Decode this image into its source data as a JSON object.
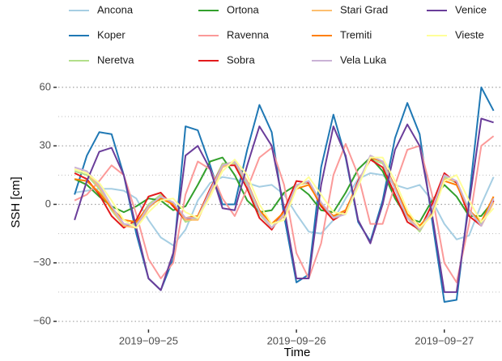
{
  "chart_data": {
    "type": "line",
    "x_label": "Time",
    "y_label": "SSH [cm]",
    "x": [
      24.5,
      24.583,
      24.667,
      24.75,
      24.833,
      24.917,
      25,
      25.083,
      25.167,
      25.25,
      25.333,
      25.417,
      25.5,
      25.583,
      25.667,
      25.75,
      25.833,
      25.917,
      26,
      26.083,
      26.167,
      26.25,
      26.333,
      26.417,
      26.5,
      26.583,
      26.667,
      26.75,
      26.833,
      26.917,
      27,
      27.083,
      27.167,
      27.25,
      27.333
    ],
    "xlim": [
      24.39,
      27.39
    ],
    "xticks": [
      {
        "value": 25,
        "label": "2019−09−25"
      },
      {
        "value": 26,
        "label": "2019−09−26"
      },
      {
        "value": 27,
        "label": "2019−09−27"
      }
    ],
    "ylim": [
      -63.3,
      66.6
    ],
    "yticks": [
      {
        "value": -60,
        "label": "−60"
      },
      {
        "value": -30,
        "label": "−30"
      },
      0,
      30,
      60
    ],
    "yminor": [
      -45,
      -15,
      15,
      45
    ],
    "grid": true,
    "legend": "top",
    "series": [
      {
        "name": "Ancona",
        "color": "#a6cee3",
        "values": [
          6,
          7,
          8,
          8,
          7,
          3,
          -8,
          -17,
          -21,
          -13,
          2,
          11,
          14,
          13,
          11,
          9,
          10,
          5,
          -5,
          -14,
          -15,
          -8,
          3,
          13,
          16,
          15,
          10,
          8,
          10,
          2,
          -10,
          -18,
          -16,
          0,
          14
        ]
      },
      {
        "name": "Koper",
        "color": "#1f78b4",
        "values": [
          5,
          25,
          37,
          36,
          15,
          -15,
          -38,
          -44,
          -28,
          40,
          38,
          20,
          0,
          0,
          28,
          51,
          37,
          -6,
          -40,
          -36,
          19,
          46,
          24,
          -9,
          -19,
          2,
          34,
          52,
          36,
          -8,
          -50,
          -49,
          3,
          60,
          48
        ]
      },
      {
        "name": "Neretva",
        "color": "#b2df8a",
        "values": [
          17,
          15,
          8,
          -3,
          -11,
          -10,
          0,
          5,
          0,
          -9,
          -7,
          8,
          21,
          21,
          10,
          -5,
          -12,
          -4,
          10,
          11,
          0,
          -7,
          -4,
          12,
          23,
          21,
          8,
          -7,
          -14,
          -3,
          14,
          11,
          -4,
          -10,
          3
        ]
      },
      {
        "name": "Ortona",
        "color": "#33a02c",
        "values": [
          13,
          10,
          4,
          -1,
          -4,
          -1,
          3,
          2,
          -3,
          -1,
          10,
          22,
          24,
          15,
          2,
          -4,
          -3,
          6,
          10,
          5,
          -3,
          -4,
          6,
          18,
          24,
          17,
          3,
          -7,
          -9,
          2,
          10,
          4,
          -6,
          -6,
          2
        ]
      },
      {
        "name": "Ravenna",
        "color": "#fb9a99",
        "values": [
          2,
          5,
          12,
          20,
          15,
          -5,
          -28,
          -38,
          -30,
          5,
          22,
          18,
          3,
          -6,
          8,
          24,
          29,
          10,
          -25,
          -38,
          -20,
          15,
          31,
          15,
          -10,
          -10,
          10,
          28,
          30,
          5,
          -30,
          -40,
          -10,
          30,
          35
        ]
      },
      {
        "name": "Sobra",
        "color": "#e31a1c",
        "values": [
          16,
          13,
          5,
          -6,
          -12,
          -8,
          4,
          6,
          -1,
          -8,
          -6,
          8,
          20,
          20,
          8,
          -7,
          -13,
          -3,
          12,
          11,
          -1,
          -8,
          -4,
          12,
          23,
          19,
          5,
          -9,
          -13,
          0,
          16,
          11,
          -6,
          -11,
          2
        ]
      },
      {
        "name": "Stari Grad",
        "color": "#fdbf6f",
        "values": [
          18,
          16,
          9,
          -2,
          -11,
          -12,
          -2,
          4,
          1,
          -8,
          -8,
          6,
          19,
          22,
          12,
          -4,
          -12,
          -6,
          9,
          12,
          1,
          -7,
          -5,
          10,
          24,
          22,
          9,
          -6,
          -13,
          -5,
          13,
          12,
          -3,
          -11,
          1
        ]
      },
      {
        "name": "Tremiti",
        "color": "#ff7f00",
        "values": [
          13,
          12,
          6,
          -2,
          -8,
          -9,
          -1,
          3,
          0,
          -7,
          -6,
          7,
          20,
          22,
          11,
          -3,
          -10,
          -4,
          8,
          10,
          0,
          -6,
          -3,
          11,
          24,
          22,
          9,
          -5,
          -11,
          -4,
          12,
          10,
          -3,
          -9,
          4
        ]
      },
      {
        "name": "Vela Luka",
        "color": "#cab2d6",
        "values": [
          19,
          17,
          10,
          -1,
          -10,
          -11,
          -1,
          4,
          1,
          -7,
          -7,
          7,
          20,
          22,
          11,
          -4,
          -12,
          -5,
          10,
          12,
          1,
          -7,
          -5,
          11,
          25,
          22,
          8,
          -7,
          -13,
          -3,
          15,
          12,
          -3,
          -11,
          3
        ]
      },
      {
        "name": "Venice",
        "color": "#6a3d9a",
        "values": [
          -8,
          12,
          27,
          29,
          15,
          -12,
          -38,
          -44,
          -25,
          25,
          30,
          18,
          -2,
          -3,
          20,
          40,
          30,
          -2,
          -38,
          -38,
          10,
          40,
          25,
          -8,
          -20,
          0,
          28,
          41,
          30,
          -5,
          -45,
          -45,
          0,
          44,
          42
        ]
      },
      {
        "name": "Vieste",
        "color": "#ffff99",
        "values": [
          18,
          16,
          11,
          2,
          -8,
          -12,
          -4,
          2,
          3,
          -4,
          -7,
          4,
          17,
          23,
          15,
          0,
          -10,
          -8,
          8,
          14,
          5,
          -4,
          -5,
          9,
          24,
          24,
          12,
          -3,
          -12,
          -6,
          12,
          15,
          2,
          -9,
          -2
        ]
      }
    ]
  }
}
